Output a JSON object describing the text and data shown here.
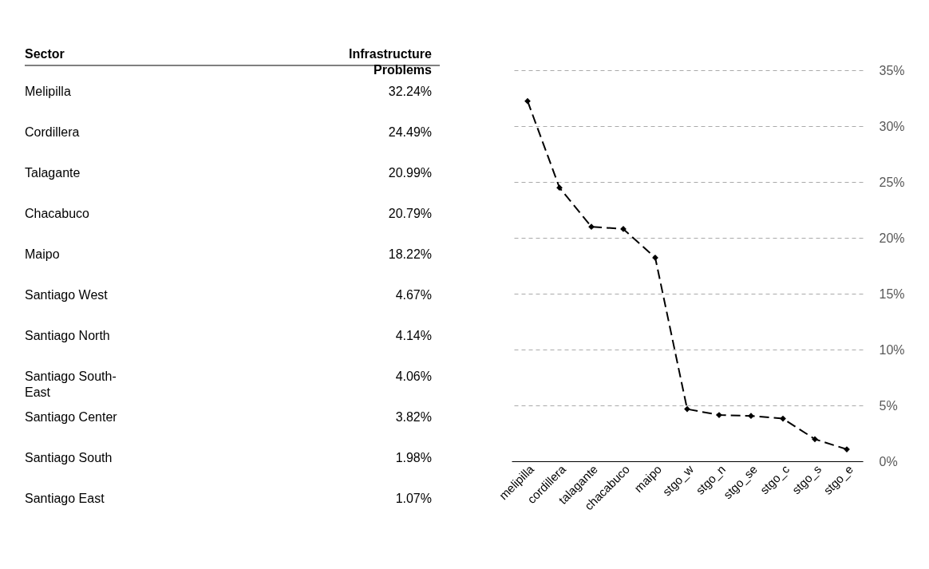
{
  "chart_data": [
    {
      "type": "other",
      "xlabel": "Sector",
      "ylabel": "Infrastructure Problems",
      "categories": [
        "Melipilla",
        "Cordillera",
        "Talagante",
        "Chacabuco",
        "Maipo",
        "Santiago West",
        "Santiago North",
        "Santiago South-East",
        "Santiago Center",
        "Santiago South",
        "Santiago East"
      ],
      "values": [
        32.24,
        24.49,
        20.99,
        20.79,
        18.22,
        4.67,
        4.14,
        4.06,
        3.82,
        1.98,
        1.07
      ],
      "value_labels": [
        "32.24%",
        "24.49%",
        "20.99%",
        "20.79%",
        "18.22%",
        "4.67%",
        "4.14%",
        "4.06%",
        "3.82%",
        "1.98%",
        "1.07%"
      ]
    },
    {
      "type": "line",
      "categories": [
        "melipilla",
        "cordillera",
        "talagante",
        "chacabuco",
        "maipo",
        "stgo_w",
        "stgo_n",
        "stgo_se",
        "stgo_c",
        "stgo_s",
        "stgo_e"
      ],
      "values": [
        32.24,
        24.49,
        20.99,
        20.79,
        18.22,
        4.67,
        4.14,
        4.06,
        3.82,
        1.98,
        1.07
      ],
      "color": "#000000",
      "marker": "diamond",
      "line_style": "dashed",
      "grid": "y",
      "ylim": [
        0,
        35
      ],
      "yticks": [
        {
          "value": 0,
          "label": "0%"
        },
        {
          "value": 5,
          "label": "5%"
        },
        {
          "value": 10,
          "label": "10%"
        },
        {
          "value": 15,
          "label": "15%"
        },
        {
          "value": 20,
          "label": "20%"
        },
        {
          "value": 25,
          "label": "25%"
        },
        {
          "value": 30,
          "label": "30%"
        },
        {
          "value": 35,
          "label": "35%"
        }
      ]
    }
  ]
}
